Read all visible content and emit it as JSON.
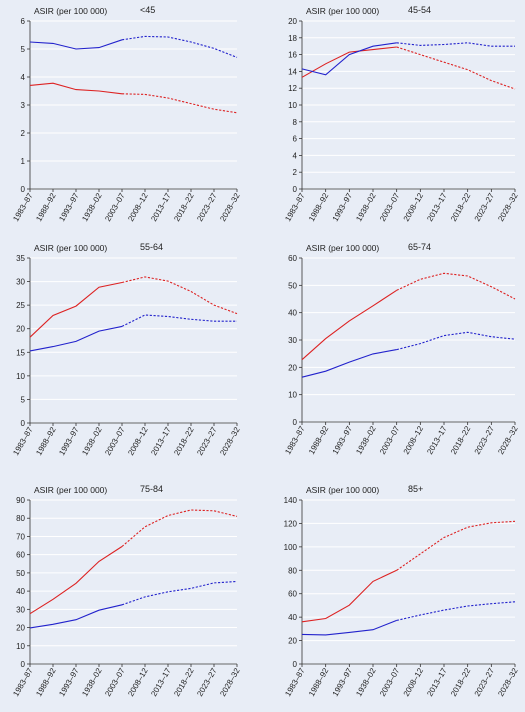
{
  "colors": {
    "female": "#dd2222",
    "male": "#2222cc",
    "axis": "#333333",
    "grid": "#ffffff"
  },
  "chart_data": [
    {
      "type": "line",
      "title": "<45",
      "ylabel": "ASIR (per 100 000)",
      "categories": [
        "1983–87",
        "1988–92",
        "1993–97",
        "1938–02",
        "2003–07",
        "2008–12",
        "2013–17",
        "2018–22",
        "2023–27",
        "2028–32"
      ],
      "ylim": [
        0,
        6
      ],
      "yticks": [
        0,
        1,
        2,
        3,
        4,
        5,
        6
      ],
      "observed_through_index": 4,
      "series": [
        {
          "color": "red",
          "values": [
            3.7,
            3.78,
            3.55,
            3.5,
            3.4,
            3.38,
            3.25,
            3.05,
            2.85,
            2.72
          ]
        },
        {
          "color": "blue",
          "values": [
            5.25,
            5.2,
            5.0,
            5.05,
            5.33,
            5.45,
            5.43,
            5.25,
            5.02,
            4.7
          ]
        }
      ]
    },
    {
      "type": "line",
      "title": "45-54",
      "ylabel": "ASIR (per 100 000)",
      "categories": [
        "1983–87",
        "1988–92",
        "1993–97",
        "1938–02",
        "2003–07",
        "2008–12",
        "2013–17",
        "2018–22",
        "2023–27",
        "2028–32"
      ],
      "ylim": [
        0,
        20
      ],
      "yticks": [
        0,
        2,
        4,
        6,
        8,
        10,
        12,
        14,
        16,
        18,
        20
      ],
      "observed_through_index": 4,
      "series": [
        {
          "color": "red",
          "values": [
            13.3,
            14.9,
            16.3,
            16.6,
            16.9,
            16.0,
            15.1,
            14.2,
            12.9,
            11.9
          ]
        },
        {
          "color": "blue",
          "values": [
            14.3,
            13.6,
            16.0,
            17.0,
            17.4,
            17.1,
            17.2,
            17.4,
            17.0,
            17.0
          ]
        }
      ]
    },
    {
      "type": "line",
      "title": "55-64",
      "ylabel": "ASIR (per 100 000)",
      "categories": [
        "1983–87",
        "1988–92",
        "1993–97",
        "1938–02",
        "2003–07",
        "2008–12",
        "2013–17",
        "2018–22",
        "2023–27",
        "2028–32"
      ],
      "ylim": [
        0,
        35
      ],
      "yticks": [
        0,
        5,
        10,
        15,
        20,
        25,
        30,
        35
      ],
      "observed_through_index": 4,
      "series": [
        {
          "color": "red",
          "values": [
            18.2,
            22.8,
            24.8,
            28.8,
            29.8,
            31.0,
            30.1,
            27.9,
            25.0,
            23.2
          ]
        },
        {
          "color": "blue",
          "values": [
            15.3,
            16.2,
            17.3,
            19.5,
            20.5,
            22.9,
            22.6,
            22.0,
            21.6,
            21.6
          ]
        }
      ]
    },
    {
      "type": "line",
      "title": "65-74",
      "ylabel": "ASIR (per 100 000)",
      "categories": [
        "1983–87",
        "1988–92",
        "1993–97",
        "1938–02",
        "2003–07",
        "2008–12",
        "2013–17",
        "2018–22",
        "2023–27",
        "2028–32"
      ],
      "ylim": [
        0,
        60
      ],
      "yticks": [
        0,
        10,
        20,
        30,
        40,
        50,
        60
      ],
      "observed_through_index": 4,
      "series": [
        {
          "color": "red",
          "values": [
            22.8,
            30.5,
            37.0,
            42.5,
            48.2,
            52.2,
            54.4,
            53.4,
            49.5,
            45.0
          ]
        },
        {
          "color": "blue",
          "values": [
            16.4,
            18.6,
            21.9,
            24.9,
            26.5,
            28.7,
            31.6,
            32.8,
            31.2,
            30.3
          ]
        }
      ]
    },
    {
      "type": "line",
      "title": "75-84",
      "ylabel": "ASIR (per 100 000)",
      "categories": [
        "1983–87",
        "1988–92",
        "1993–97",
        "1938–02",
        "2003–07",
        "2008–12",
        "2013–17",
        "2018–22",
        "2023–27",
        "2028–32"
      ],
      "ylim": [
        0,
        90
      ],
      "yticks": [
        0,
        10,
        20,
        30,
        40,
        50,
        60,
        70,
        80,
        90
      ],
      "observed_through_index": 4,
      "series": [
        {
          "color": "red",
          "values": [
            27.6,
            35.5,
            44.3,
            56.3,
            64.5,
            75.3,
            81.5,
            84.5,
            84.1,
            81.0
          ]
        },
        {
          "color": "blue",
          "values": [
            19.8,
            21.8,
            24.3,
            29.5,
            32.5,
            36.8,
            39.6,
            41.5,
            44.5,
            45.3
          ]
        }
      ]
    },
    {
      "type": "line",
      "title": "85+",
      "ylabel": "ASIR (per 100 000)",
      "categories": [
        "1983–87",
        "1988–92",
        "1993–97",
        "1938–02",
        "2003–07",
        "2008–12",
        "2013–17",
        "2018–22",
        "2023–27",
        "2028–32"
      ],
      "ylim": [
        0,
        140
      ],
      "yticks": [
        0,
        20,
        40,
        60,
        80,
        100,
        120,
        140
      ],
      "observed_through_index": 4,
      "series": [
        {
          "color": "red",
          "values": [
            36.0,
            38.8,
            50.2,
            70.5,
            80.0,
            94.0,
            108.0,
            116.8,
            120.5,
            121.8
          ]
        },
        {
          "color": "blue",
          "values": [
            25.3,
            24.8,
            27.0,
            29.3,
            37.2,
            41.8,
            46.0,
            49.5,
            51.5,
            53.1
          ]
        }
      ]
    }
  ]
}
